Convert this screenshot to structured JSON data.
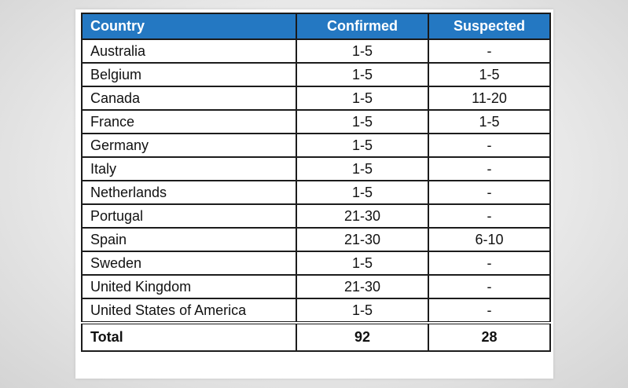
{
  "table": {
    "headers": [
      "Country",
      "Confirmed",
      "Suspected"
    ],
    "rows": [
      [
        "Australia",
        "1-5",
        "-"
      ],
      [
        "Belgium",
        "1-5",
        "1-5"
      ],
      [
        "Canada",
        "1-5",
        "11-20"
      ],
      [
        "France",
        "1-5",
        "1-5"
      ],
      [
        "Germany",
        "1-5",
        "-"
      ],
      [
        "Italy",
        "1-5",
        "-"
      ],
      [
        "Netherlands",
        "1-5",
        "-"
      ],
      [
        "Portugal",
        "21-30",
        "-"
      ],
      [
        "Spain",
        "21-30",
        "6-10"
      ],
      [
        "Sweden",
        "1-5",
        "-"
      ],
      [
        "United Kingdom",
        "21-30",
        "-"
      ],
      [
        "United States of America",
        "1-5",
        "-"
      ]
    ],
    "total": [
      "Total",
      "92",
      "28"
    ]
  },
  "colors": {
    "header_bg": "#2478c2",
    "header_text": "#ffffff",
    "border": "#1c1c1c"
  }
}
